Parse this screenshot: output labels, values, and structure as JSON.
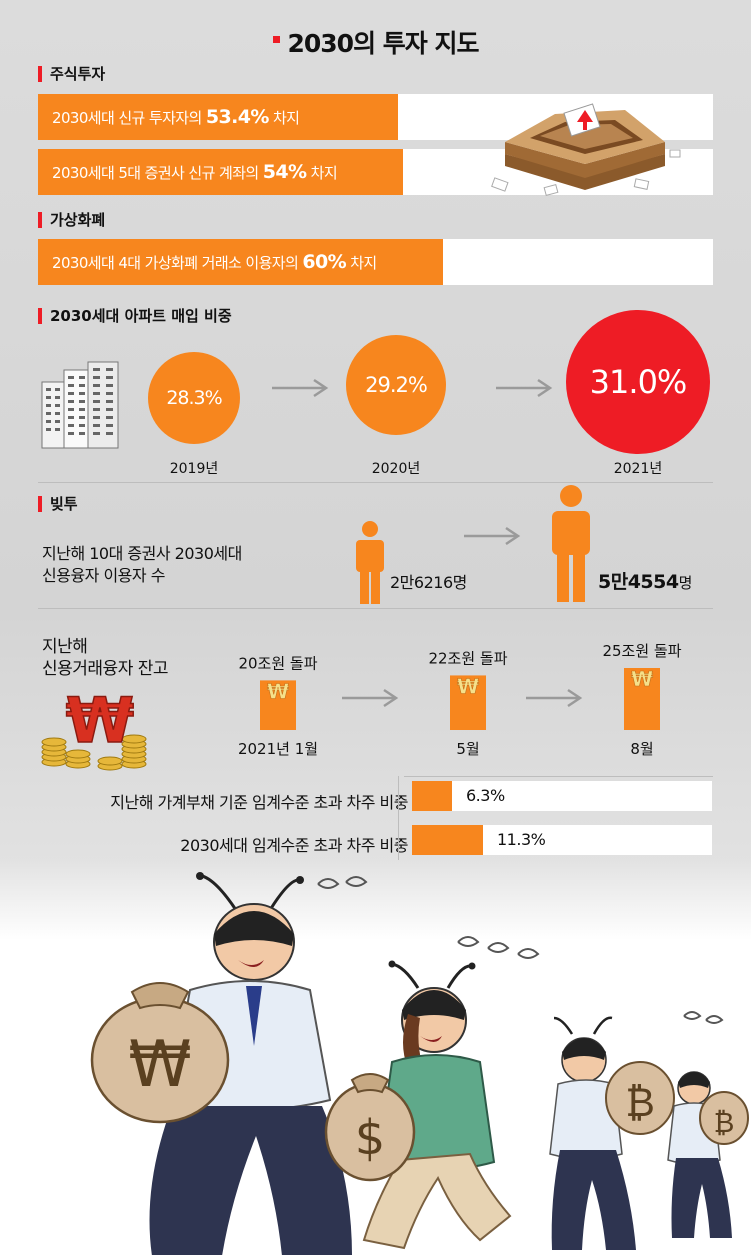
{
  "title": "2030의 투자 지도",
  "stocks": {
    "heading": "주식투자",
    "rows": [
      {
        "pre": "2030세대 신규 투자자의 ",
        "value": "53.4%",
        "post": " 차지",
        "pct": 53.4
      },
      {
        "pre": "2030세대 5대 증권사 신규 계좌의 ",
        "value": "54%",
        "post": " 차지",
        "pct": 54
      }
    ]
  },
  "crypto": {
    "heading": "가상화폐",
    "row": {
      "pre": "2030세대 4대 가상화폐 거래소 이용자의 ",
      "value": "60%",
      "post": " 차지",
      "pct": 60
    }
  },
  "apartment": {
    "heading": "2030세대 아파트 매입 비중",
    "items": [
      {
        "year": "2019년",
        "label": "28.3%",
        "value": 28.3
      },
      {
        "year": "2020년",
        "label": "29.2%",
        "value": 29.2
      },
      {
        "year": "2021년",
        "label": "31.0%",
        "value": 31.0
      }
    ]
  },
  "debt_invest": {
    "heading": "빚투",
    "users_label_line1": "지난해 10대 증권사 2030세대",
    "users_label_line2": "신용융자 이용자 수",
    "users_before": "2만6216명",
    "users_after_num": "5만4554",
    "users_after_unit": "명",
    "balance_label_line1": "지난해",
    "balance_label_line2": "신용거래융자 잔고",
    "balance": [
      {
        "label": "20조원 돌파",
        "period": "2021년 1월",
        "value": 20
      },
      {
        "label": "22조원 돌파",
        "period": "5월",
        "value": 22
      },
      {
        "label": "25조원 돌파",
        "period": "8월",
        "value": 25
      }
    ],
    "won_glyph": "₩"
  },
  "threshold": {
    "rows": [
      {
        "label": "지난해 가계부채 기준 임계수준 초과 차주 비중",
        "value_label": "6.3%",
        "value": 6.3
      },
      {
        "label": "2030세대 임계수준 초과 차주 비중",
        "value_label": "11.3%",
        "value": 11.3
      }
    ]
  },
  "colors": {
    "orange": "#f7861e",
    "red": "#ee1c25",
    "gray_arrow": "#9a9a9a"
  },
  "bag_glyphs": [
    "₩",
    "$",
    "₿"
  ]
}
